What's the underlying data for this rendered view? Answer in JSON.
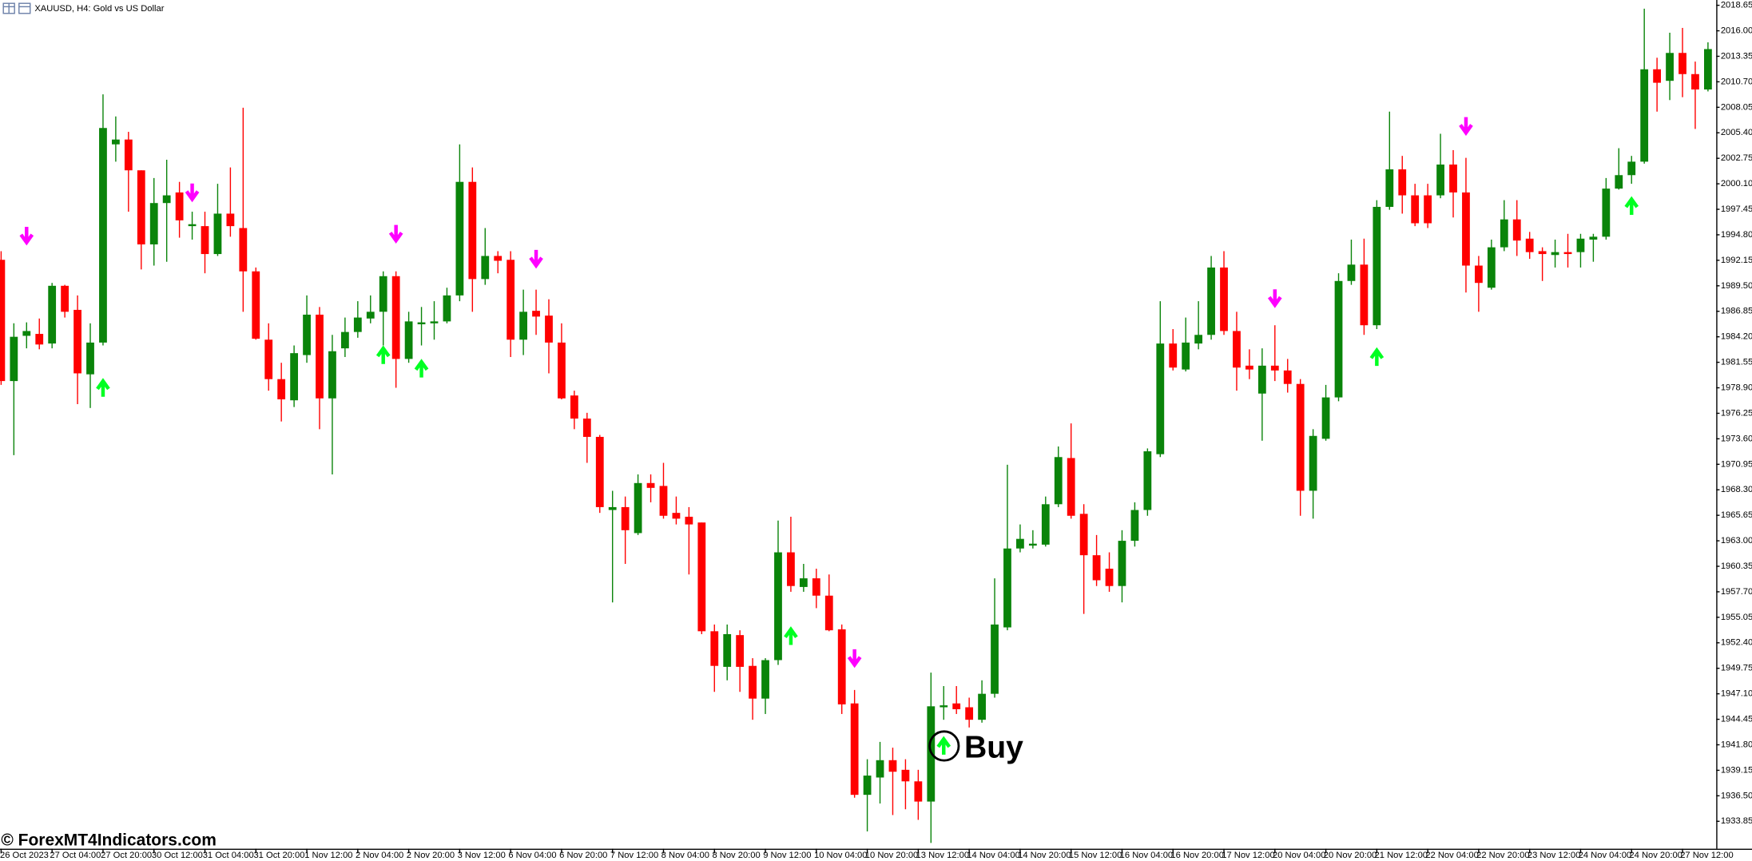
{
  "chart_data": {
    "type": "candlestick",
    "title": "XAUUSD, H4: Gold vs US Dollar",
    "watermark": "© ForexMT4Indicators.com",
    "annotation": "Buy",
    "bull_color": "#0a840a",
    "bear_color": "#ff0000",
    "up_arrow_color": "#00ff22",
    "down_arrow_color": "#ff00ff",
    "grid": false,
    "ylim": [
      1931.0,
      2019.2
    ],
    "yticks": [
      2018.65,
      {
        "value": 2016.0,
        "label": "2016.00"
      },
      2013.35,
      {
        "value": 2010.7,
        "label": "2010.70"
      },
      2008.05,
      {
        "value": 2005.4,
        "label": "2005.40"
      },
      2002.75,
      {
        "value": 2000.1,
        "label": "2000.10"
      },
      1997.45,
      {
        "value": 1994.8,
        "label": "1994.80"
      },
      1992.15,
      {
        "value": 1989.5,
        "label": "1989.50"
      },
      1986.85,
      {
        "value": 1984.2,
        "label": "1984.20"
      },
      1981.55,
      {
        "value": 1978.9,
        "label": "1978.90"
      },
      1976.25,
      {
        "value": 1973.6,
        "label": "1973.60"
      },
      1970.95,
      {
        "value": 1968.3,
        "label": "1968.30"
      },
      1965.65,
      {
        "value": 1963.0,
        "label": "1963.00"
      },
      1960.35,
      {
        "value": 1957.7,
        "label": "1957.70"
      },
      1955.05,
      {
        "value": 1952.4,
        "label": "1952.40"
      },
      1949.75,
      {
        "value": 1947.1,
        "label": "1947.10"
      },
      1944.45,
      {
        "value": 1941.8,
        "label": "1941.80"
      },
      1939.15,
      {
        "value": 1936.5,
        "label": "1936.50"
      },
      1933.85
    ],
    "categories": [
      "26 Oct 2023",
      null,
      null,
      null,
      "27 Oct 04:00",
      null,
      null,
      null,
      "27 Oct 20:00",
      null,
      null,
      null,
      "30 Oct 12:00",
      null,
      null,
      null,
      "31 Oct 04:00",
      null,
      null,
      null,
      "31 Oct 20:00",
      null,
      null,
      null,
      "1 Nov 12:00",
      null,
      null,
      null,
      "2 Nov 04:00",
      null,
      null,
      null,
      "2 Nov 20:00",
      null,
      null,
      null,
      "3 Nov 12:00",
      null,
      null,
      null,
      "6 Nov 04:00",
      null,
      null,
      null,
      "6 Nov 20:00",
      null,
      null,
      null,
      "7 Nov 12:00",
      null,
      null,
      null,
      "8 Nov 04:00",
      null,
      null,
      null,
      "8 Nov 20:00",
      null,
      null,
      null,
      "9 Nov 12:00",
      null,
      null,
      null,
      "10 Nov 04:00",
      null,
      null,
      null,
      "10 Nov 20:00",
      null,
      null,
      null,
      "13 Nov 12:00",
      null,
      null,
      null,
      "14 Nov 04:00",
      null,
      null,
      null,
      "14 Nov 20:00",
      null,
      null,
      null,
      "15 Nov 12:00",
      null,
      null,
      null,
      "16 Nov 04:00",
      null,
      null,
      null,
      "16 Nov 20:00",
      null,
      null,
      null,
      "17 Nov 12:00",
      null,
      null,
      null,
      "20 Nov 04:00",
      null,
      null,
      null,
      "20 Nov 20:00",
      null,
      null,
      null,
      "21 Nov 12:00",
      null,
      null,
      null,
      "22 Nov 04:00",
      null,
      null,
      null,
      "22 Nov 20:00",
      null,
      null,
      null,
      "23 Nov 12:00",
      null,
      null,
      null,
      "24 Nov 04:00",
      null,
      null,
      null,
      "24 Nov 20:00",
      null,
      null,
      null,
      "27 Nov 12:00",
      null,
      null
    ],
    "open": [
      1992.2,
      1979.6,
      1984.3,
      1984.5,
      1983.5,
      1989.5,
      1987.0,
      1980.3,
      1983.6,
      2004.2,
      2004.7,
      2001.5,
      1993.8,
      1998.1,
      1999.2,
      1995.7,
      1995.7,
      1992.8,
      1997.0,
      1995.5,
      1991.0,
      1983.9,
      1979.8,
      1977.6,
      1982.3,
      1986.5,
      1977.8,
      1983.0,
      1984.7,
      1986.1,
      1986.8,
      1990.5,
      1981.9,
      1985.5,
      1985.6,
      1985.8,
      1988.5,
      2000.3,
      1990.2,
      1992.6,
      1992.2,
      1983.9,
      1986.9,
      1986.4,
      1983.6,
      1978.1,
      1975.7,
      1973.8,
      1966.2,
      1966.5,
      1963.8,
      1969.0,
      1968.7,
      1965.9,
      1965.5,
      1964.9,
      1953.6,
      1949.9,
      1953.2,
      1950.0,
      1946.6,
      1950.6,
      1961.8,
      1958.2,
      1959.1,
      1957.3,
      1953.8,
      1946.1,
      1936.6,
      1938.4,
      1940.2,
      1939.2,
      1938.0,
      1935.9,
      1945.7,
      1946.1,
      1945.7,
      1944.4,
      1947.1,
      1954.0,
      1962.2,
      1962.5,
      1962.6,
      1966.8,
      1971.6,
      1965.8,
      1961.5,
      1960.1,
      1958.3,
      1963.0,
      1966.2,
      1972.0,
      1983.5,
      1980.8,
      1983.5,
      1984.4,
      1991.4,
      1984.8,
      1981.2,
      1978.3,
      1981.2,
      1980.7,
      1979.3,
      1968.2,
      1973.6,
      1977.9,
      1990.0,
      1991.7,
      1985.4,
      1997.7,
      2001.6,
      1998.9,
      1998.9,
      1998.9,
      2002.1,
      1999.2,
      1991.6,
      1989.3,
      1993.5,
      1996.4,
      1994.4,
      1993.1,
      1992.7,
      1993.0,
      1993.0,
      1994.3,
      1994.6,
      1999.6,
      2001.0,
      2002.4,
      2012.0,
      2010.8,
      2013.7,
      2011.5,
      2009.9
    ],
    "high": [
      1993.1,
      1985.6,
      1985.7,
      1986.1,
      1989.8,
      1989.6,
      1988.5,
      1985.6,
      2009.4,
      2007.1,
      2005.5,
      2001.5,
      2000.7,
      2002.6,
      2000.3,
      1997.2,
      1997.2,
      2000.1,
      2001.8,
      2008.0,
      1991.4,
      1985.6,
      1981.5,
      1983.3,
      1988.5,
      1987.3,
      1984.4,
      1986.2,
      1987.9,
      1988.5,
      1991.0,
      1991.0,
      1986.8,
      1987.3,
      1987.9,
      1989.3,
      2004.2,
      2001.8,
      1995.5,
      1993.1,
      1993.1,
      1989.1,
      1989.1,
      1988.1,
      1985.6,
      1978.6,
      1976.3,
      1974.0,
      1968.2,
      1967.6,
      1969.9,
      1969.9,
      1971.1,
      1967.6,
      1966.5,
      1964.9,
      1954.3,
      1954.3,
      1953.7,
      1950.8,
      1950.8,
      1965.1,
      1965.5,
      1960.6,
      1960.1,
      1959.5,
      1954.3,
      1947.5,
      1940.3,
      1942.1,
      1941.5,
      1940.3,
      1939.2,
      1949.3,
      1947.9,
      1947.9,
      1946.7,
      1948.5,
      1959.1,
      1970.9,
      1964.7,
      1964.1,
      1967.6,
      1972.8,
      1975.2,
      1966.8,
      1963.6,
      1961.8,
      1964.1,
      1967.0,
      1972.6,
      1987.9,
      1985.0,
      1986.2,
      1987.9,
      1992.6,
      1993.1,
      1986.8,
      1982.9,
      1983.0,
      1985.4,
      1981.9,
      1979.8,
      1974.6,
      1979.2,
      1990.8,
      1994.3,
      1994.4,
      1998.4,
      2007.6,
      2003.0,
      2000.1,
      2000.1,
      2005.3,
      2003.6,
      2002.8,
      1992.6,
      1994.3,
      1998.4,
      1998.4,
      1995.1,
      1993.5,
      1994.3,
      1994.9,
      1994.9,
      1994.9,
      2000.7,
      2003.8,
      2003.0,
      2018.3,
      2013.2,
      2015.8,
      2016.3,
      2012.8,
      2014.8
    ],
    "low": [
      1979.2,
      1971.9,
      1983.0,
      1982.9,
      1983.0,
      1986.2,
      1977.2,
      1976.8,
      1983.3,
      2002.4,
      1997.2,
      1991.2,
      1991.6,
      1992.0,
      1994.5,
      1994.3,
      1990.8,
      1992.6,
      1994.6,
      1986.8,
      1983.9,
      1978.6,
      1975.4,
      1976.9,
      1981.5,
      1974.6,
      1969.9,
      1982.1,
      1984.1,
      1985.6,
      1983.3,
      1978.9,
      1981.5,
      1983.3,
      1983.9,
      1985.6,
      1987.9,
      1986.8,
      1989.6,
      1990.8,
      1982.1,
      1982.3,
      1984.4,
      1980.4,
      1977.7,
      1974.6,
      1971.1,
      1965.9,
      1956.6,
      1960.6,
      1963.6,
      1967.0,
      1965.3,
      1964.7,
      1959.5,
      1953.3,
      1947.3,
      1948.5,
      1947.3,
      1944.4,
      1945.0,
      1950.1,
      1957.7,
      1957.7,
      1956.0,
      1953.6,
      1945.0,
      1936.3,
      1932.8,
      1935.7,
      1934.5,
      1935.1,
      1934.0,
      1931.6,
      1944.4,
      1945.0,
      1943.6,
      1944.1,
      1946.7,
      1953.7,
      1961.8,
      1962.2,
      1962.4,
      1966.5,
      1965.3,
      1955.4,
      1958.3,
      1957.7,
      1956.6,
      1962.4,
      1965.6,
      1971.7,
      1980.7,
      1980.6,
      1982.9,
      1983.9,
      1984.4,
      1978.6,
      1979.8,
      1973.4,
      1979.6,
      1978.4,
      1965.6,
      1965.3,
      1973.4,
      1977.5,
      1989.6,
      1984.4,
      1985.0,
      1997.4,
      1997.0,
      1995.7,
      1995.5,
      1998.6,
      1996.6,
      1988.8,
      1986.8,
      1989.1,
      1993.1,
      1992.6,
      1992.3,
      1990.0,
      1991.4,
      1991.4,
      1991.4,
      1992.0,
      1994.3,
      1999.5,
      2000.1,
      2002.2,
      2007.6,
      2008.8,
      2009.1,
      2005.8,
      2009.7
    ],
    "close": [
      1979.6,
      1984.2,
      1984.8,
      1983.4,
      1989.5,
      1986.8,
      1980.4,
      1983.6,
      2005.9,
      2004.7,
      2001.5,
      1993.8,
      1998.1,
      1998.9,
      1996.3,
      1995.9,
      1992.8,
      1997.0,
      1995.7,
      1991.0,
      1984.0,
      1979.8,
      1977.7,
      1982.5,
      1986.5,
      1977.8,
      1982.7,
      1984.7,
      1986.2,
      1986.8,
      1990.5,
      1981.9,
      1985.8,
      1985.7,
      1985.8,
      1988.5,
      2000.3,
      1990.2,
      1992.6,
      1992.1,
      1983.9,
      1986.8,
      1986.3,
      1983.6,
      1977.8,
      1975.7,
      1973.8,
      1966.5,
      1966.5,
      1964.1,
      1969.0,
      1968.5,
      1965.6,
      1965.3,
      1964.7,
      1953.6,
      1950.0,
      1953.3,
      1949.9,
      1946.6,
      1950.6,
      1961.8,
      1958.3,
      1959.1,
      1957.3,
      1953.7,
      1946.0,
      1936.6,
      1938.6,
      1940.2,
      1939.0,
      1938.0,
      1935.9,
      1945.8,
      1945.9,
      1945.5,
      1944.4,
      1947.1,
      1954.3,
      1962.2,
      1963.2,
      1962.7,
      1966.8,
      1971.7,
      1965.6,
      1961.5,
      1958.9,
      1958.3,
      1963.0,
      1966.2,
      1972.3,
      1983.5,
      1981.0,
      1983.6,
      1984.4,
      1991.4,
      1984.8,
      1981.0,
      1980.8,
      1981.2,
      1980.7,
      1979.3,
      1968.2,
      1973.9,
      1977.9,
      1990.0,
      1991.7,
      1985.4,
      1997.7,
      2001.6,
      1998.9,
      1996.0,
      1996.0,
      2002.1,
      1999.2,
      1991.6,
      1989.8,
      1993.5,
      1996.4,
      1994.2,
      1993.0,
      1992.8,
      1993.0,
      1992.8,
      1994.4,
      1994.6,
      1999.6,
      2001.0,
      2002.4,
      2012.0,
      2010.6,
      2013.7,
      2011.5,
      2009.9,
      2014.1
    ],
    "up_arrows": [
      null,
      null,
      null,
      null,
      null,
      null,
      null,
      null,
      1978.9,
      null,
      null,
      null,
      null,
      null,
      null,
      null,
      null,
      null,
      null,
      null,
      null,
      null,
      null,
      null,
      null,
      null,
      null,
      null,
      null,
      null,
      1982.3,
      null,
      null,
      1980.9,
      null,
      null,
      null,
      null,
      null,
      null,
      null,
      null,
      null,
      null,
      null,
      null,
      null,
      null,
      null,
      null,
      null,
      null,
      null,
      null,
      null,
      null,
      null,
      null,
      null,
      null,
      null,
      null,
      1953.1,
      null,
      null,
      null,
      null,
      null,
      null,
      null,
      null,
      null,
      null,
      null,
      1941.7,
      null,
      null,
      null,
      null,
      null,
      null,
      null,
      null,
      null,
      null,
      null,
      null,
      null,
      null,
      null,
      null,
      null,
      null,
      null,
      null,
      null,
      null,
      null,
      null,
      null,
      null,
      null,
      null,
      null,
      null,
      null,
      null,
      null,
      1982.1,
      null,
      null,
      null,
      null,
      null,
      null,
      null,
      null,
      null,
      null,
      null,
      null,
      null,
      null,
      null,
      null,
      null,
      null,
      null,
      1997.8,
      null,
      null,
      null,
      null,
      null,
      null
    ],
    "down_arrows": [
      null,
      null,
      1994.7,
      null,
      null,
      null,
      null,
      null,
      null,
      null,
      null,
      null,
      null,
      null,
      null,
      1999.2,
      null,
      null,
      null,
      null,
      null,
      null,
      null,
      null,
      null,
      null,
      null,
      null,
      null,
      null,
      null,
      1994.9,
      null,
      null,
      null,
      null,
      null,
      null,
      null,
      null,
      null,
      null,
      1992.3,
      null,
      null,
      null,
      null,
      null,
      null,
      null,
      null,
      null,
      null,
      null,
      null,
      null,
      null,
      null,
      null,
      null,
      null,
      null,
      null,
      null,
      null,
      null,
      null,
      1950.8,
      null,
      null,
      null,
      null,
      null,
      null,
      null,
      null,
      null,
      null,
      null,
      null,
      null,
      null,
      null,
      null,
      null,
      null,
      null,
      null,
      null,
      null,
      null,
      null,
      null,
      null,
      null,
      null,
      null,
      null,
      null,
      null,
      1988.2,
      null,
      null,
      null,
      null,
      null,
      null,
      null,
      null,
      null,
      null,
      null,
      null,
      null,
      null,
      2006.1,
      null,
      null,
      null,
      null,
      null,
      null,
      null,
      null,
      null,
      null,
      null,
      null,
      null,
      null,
      null,
      null,
      null,
      null,
      null
    ]
  }
}
